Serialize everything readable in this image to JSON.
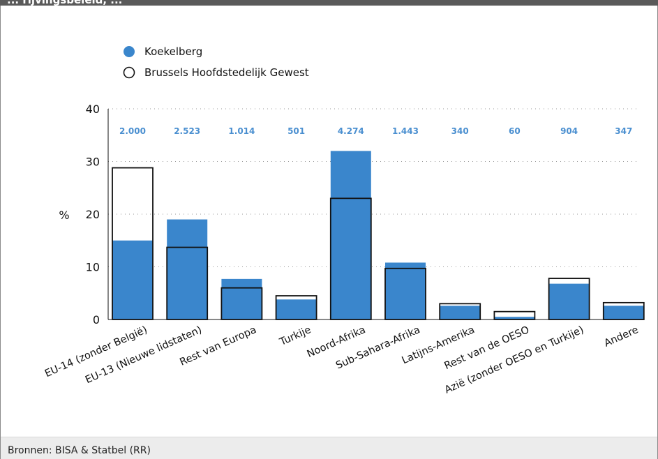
{
  "header": {
    "title": "... rijvingsbeleid, ..."
  },
  "footer": {
    "source": "Bronnen: BISA & Statbel (RR)"
  },
  "chart_data": {
    "type": "bar",
    "ylabel": "%",
    "ylim": [
      0,
      40
    ],
    "yticks": [
      0,
      10,
      20,
      30,
      40
    ],
    "grid": "horizontal dotted",
    "legend_position": "top-left",
    "categories": [
      "EU-14 (zonder België)",
      "EU-13 (Nieuwe lidstaten)",
      "Rest van Europa",
      "Turkije",
      "Noord-Afrika",
      "Sub-Sahara-Afrika",
      "Latijns-Amerika",
      "Rest van de OESO",
      "Azië (zonder OESO en Turkije)",
      "Andere"
    ],
    "series": [
      {
        "name": "Koekelberg",
        "color": "#3a86cc",
        "style": "filled",
        "values": [
          15.0,
          19.0,
          7.7,
          3.8,
          32.0,
          10.8,
          2.6,
          0.5,
          6.8,
          2.6
        ]
      },
      {
        "name": "Brussels Hoofdstedelijk Gewest",
        "color": "#000000",
        "style": "outline",
        "values": [
          28.8,
          13.7,
          6.0,
          4.5,
          23.0,
          9.7,
          3.0,
          1.5,
          7.8,
          3.2
        ]
      }
    ],
    "data_labels": [
      "2.000",
      "2.523",
      "1.014",
      "501",
      "4.274",
      "1.443",
      "340",
      "60",
      "904",
      "347"
    ]
  }
}
